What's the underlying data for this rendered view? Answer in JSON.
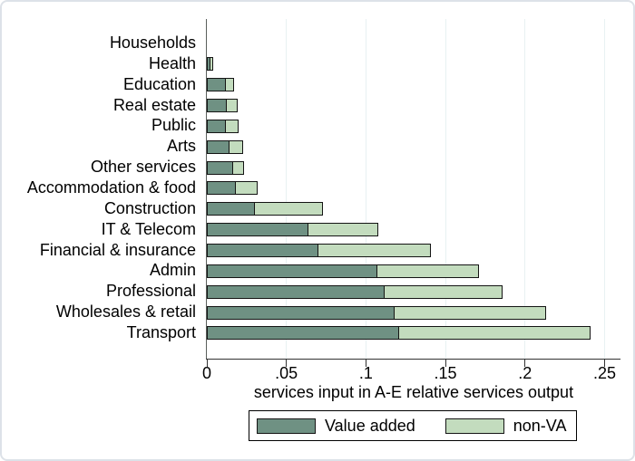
{
  "chart_data": {
    "type": "bar",
    "orientation": "horizontal",
    "stacked": true,
    "title": "",
    "xlabel": "services input in A-E relative services output",
    "ylabel": "",
    "xlim": [
      0,
      0.26
    ],
    "grid": true,
    "legend_position": "bottom-center",
    "categories": [
      "Households",
      "Health",
      "Education",
      "Real estate",
      "Public",
      "Arts",
      "Other services",
      "Accommodation & food",
      "Construction",
      "IT & Telecom",
      "Financial & insurance",
      "Admin",
      "Professional",
      "Wholesales & retail",
      "Transport"
    ],
    "series": [
      {
        "name": "Value added",
        "color": "#6f9183",
        "values": [
          0,
          0.002,
          0.012,
          0.0125,
          0.012,
          0.0145,
          0.0165,
          0.018,
          0.03,
          0.064,
          0.07,
          0.107,
          0.112,
          0.118,
          0.121
        ]
      },
      {
        "name": "non-VA",
        "color": "#c3dcbe",
        "values": [
          0,
          0.002,
          0.005,
          0.007,
          0.008,
          0.0085,
          0.007,
          0.014,
          0.043,
          0.044,
          0.071,
          0.064,
          0.074,
          0.095,
          0.12
        ]
      }
    ],
    "xticks": {
      "values": [
        0,
        0.05,
        0.1,
        0.15,
        0.2,
        0.25
      ],
      "labels": [
        "0",
        ".05",
        ".1",
        ".15",
        ".2",
        ".25"
      ]
    }
  },
  "colors": {
    "value_added": "#6f9183",
    "non_va": "#c3dcbe",
    "bar_outline": "#141414",
    "gridline": "#e8f1f2",
    "axis": "#444444",
    "frame_border": "#dde2e8"
  }
}
